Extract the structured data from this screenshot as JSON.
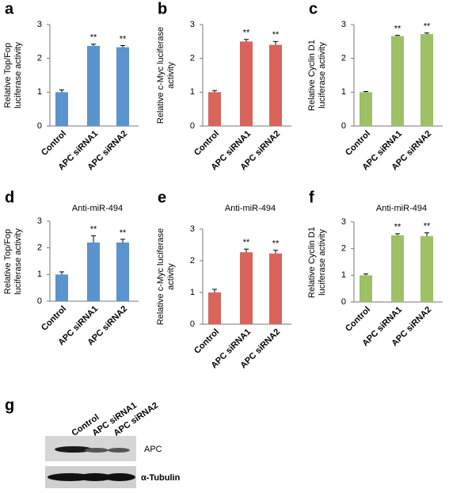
{
  "chart_data": [
    {
      "type": "bar",
      "panel": "a",
      "ylabel": "Relative Top/Fop luciferase activity",
      "categories": [
        "Control",
        "APC siRNA1",
        "APC siRNA2"
      ],
      "values": [
        1.0,
        2.37,
        2.33
      ],
      "errors": [
        0.07,
        0.05,
        0.05
      ],
      "annotations": [
        null,
        "**",
        "**"
      ],
      "color": "#5b93cf",
      "ylim": [
        0,
        3
      ],
      "yticks": [
        0,
        1,
        2,
        3
      ]
    },
    {
      "type": "bar",
      "panel": "b",
      "ylabel": "Relative c-Myc luciferase activity",
      "categories": [
        "Control",
        "APC siRNA1",
        "APC siRNA2"
      ],
      "values": [
        1.0,
        2.5,
        2.4
      ],
      "errors": [
        0.05,
        0.06,
        0.1
      ],
      "annotations": [
        null,
        "**",
        "**"
      ],
      "color": "#d8645b",
      "ylim": [
        0,
        3
      ],
      "yticks": [
        0,
        1,
        2,
        3
      ]
    },
    {
      "type": "bar",
      "panel": "c",
      "ylabel": "Relative Cyclin D1 luciferase activity",
      "categories": [
        "Control",
        "APC siRNA1",
        "APC siRNA2"
      ],
      "values": [
        1.0,
        2.66,
        2.72
      ],
      "errors": [
        0.02,
        0.02,
        0.03
      ],
      "annotations": [
        null,
        "**",
        "**"
      ],
      "color": "#9dc164",
      "ylim": [
        0,
        3
      ],
      "yticks": [
        0,
        1,
        2,
        3
      ]
    },
    {
      "type": "bar",
      "panel": "d",
      "title": "Anti-miR-494",
      "ylabel": "Relative Top/Fop luciferase activity",
      "categories": [
        "Control",
        "APC siRNA1",
        "APC siRNA2"
      ],
      "values": [
        1.0,
        2.2,
        2.2
      ],
      "errors": [
        0.1,
        0.25,
        0.12
      ],
      "annotations": [
        null,
        "**",
        "**"
      ],
      "color": "#5b93cf",
      "ylim": [
        0,
        3
      ],
      "yticks": [
        0,
        1,
        2,
        3
      ]
    },
    {
      "type": "bar",
      "panel": "e",
      "title": "Anti-miR-494",
      "ylabel": "Relative c-Myc luciferase activity",
      "categories": [
        "Control",
        "APC siRNA1",
        "APC siRNA2"
      ],
      "values": [
        1.0,
        2.27,
        2.23
      ],
      "errors": [
        0.1,
        0.1,
        0.1
      ],
      "annotations": [
        null,
        "**",
        "**"
      ],
      "color": "#d8645b",
      "ylim": [
        0,
        3
      ],
      "yticks": [
        0,
        1,
        2,
        3
      ]
    },
    {
      "type": "bar",
      "panel": "f",
      "title": "Anti-miR-494",
      "ylabel": "Relative Cyclin D1 luciferase activity",
      "categories": [
        "Control",
        "APC siRNA1",
        "APC siRNA2"
      ],
      "values": [
        1.0,
        2.5,
        2.47
      ],
      "errors": [
        0.05,
        0.06,
        0.12
      ],
      "annotations": [
        null,
        "**",
        "**"
      ],
      "color": "#9dc164",
      "ylim": [
        0,
        3
      ],
      "yticks": [
        0,
        1,
        2,
        3
      ]
    }
  ],
  "blot": {
    "panel": "g",
    "lanes": [
      "Control",
      "APC siRNA1",
      "APC siRNA2"
    ],
    "bands": [
      "APC",
      "α-Tubulin"
    ]
  }
}
